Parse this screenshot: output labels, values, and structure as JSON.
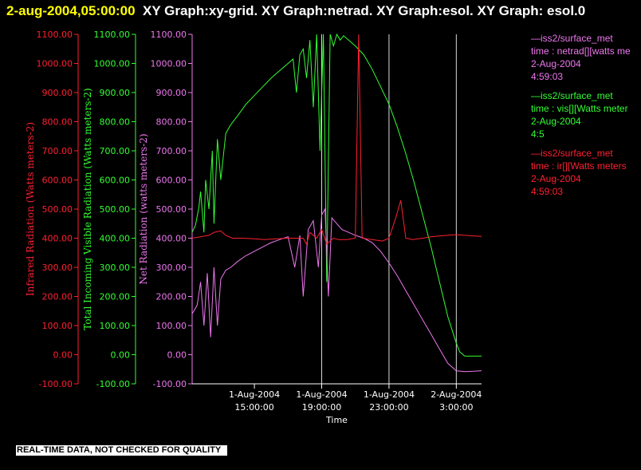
{
  "header": {
    "timestamp": "2-aug-2004,05:00:00",
    "title_text": "XY Graph:xy-grid.  XY Graph:netrad.  XY Graph:esol.  XY Graph: esol.0"
  },
  "footer": {
    "notice": "REAL-TIME DATA, NOT CHECKED FOR QUALITY"
  },
  "colors": {
    "ir": "#ff2030",
    "vis": "#33ff33",
    "netrad": "#ee77ee",
    "axis": "#ffffff",
    "grid": "#ffffff",
    "background": "#000000"
  },
  "legend": [
    {
      "color": "#ee77ee",
      "lines": [
        "—iss2/surface_met",
        "time : netrad[][watts me",
        "2-Aug-2004",
        "4:59:03"
      ]
    },
    {
      "color": "#33ff33",
      "lines": [
        "—iss2/surface_met",
        "time : vis[][Watts meter",
        "2-Aug-2004",
        "4:5"
      ]
    },
    {
      "color": "#ff2030",
      "lines": [
        "—iss2/surface_met",
        "time : ir[][Watts meters",
        "2-Aug-2004",
        "4:59:03"
      ]
    }
  ],
  "chart_data": {
    "type": "line",
    "xlabel": "Time",
    "x_ticks": [
      {
        "line1": "1-Aug-2004",
        "line2": "15:00:00",
        "hour": 15
      },
      {
        "line1": "1-Aug-2004",
        "line2": "19:00:00",
        "hour": 19
      },
      {
        "line1": "1-Aug-2004",
        "line2": "23:00:00",
        "hour": 23
      },
      {
        "line1": "2-Aug-2004",
        "line2": "3:00:00",
        "hour": 27
      }
    ],
    "xlim_hours": [
      11.3,
      28.5
    ],
    "vertical_gridlines_hours": [
      19,
      23,
      27
    ],
    "y_axes": [
      {
        "key": "ir",
        "label": "Infrared Radiation (Watts meters-2)",
        "color": "#ff2030"
      },
      {
        "key": "vis",
        "label": "Total Incoming Visible Radiation (Watts meters-2)",
        "color": "#33ff33"
      },
      {
        "key": "netrad",
        "label": "Net Radiation (watts meters-2)",
        "color": "#ee77ee"
      }
    ],
    "ylim": [
      -100,
      1100
    ],
    "y_ticks": [
      "-100.00",
      "0.00",
      "100.00",
      "200.00",
      "300.00",
      "400.00",
      "500.00",
      "600.00",
      "700.00",
      "800.00",
      "900.00",
      "1000.00",
      "1100.00"
    ],
    "series": [
      {
        "key": "vis",
        "color": "#33ff33",
        "points": [
          [
            11.3,
            420
          ],
          [
            11.5,
            445
          ],
          [
            11.7,
            505
          ],
          [
            11.8,
            560
          ],
          [
            12.0,
            420
          ],
          [
            12.1,
            600
          ],
          [
            12.3,
            500
          ],
          [
            12.5,
            700
          ],
          [
            12.6,
            450
          ],
          [
            12.8,
            740
          ],
          [
            13.0,
            600
          ],
          [
            13.3,
            760
          ],
          [
            13.6,
            790
          ],
          [
            14.0,
            820
          ],
          [
            14.5,
            860
          ],
          [
            15.0,
            890
          ],
          [
            15.5,
            920
          ],
          [
            16.0,
            950
          ],
          [
            16.5,
            975
          ],
          [
            17.0,
            1000
          ],
          [
            17.3,
            1015
          ],
          [
            17.5,
            900
          ],
          [
            17.7,
            1030
          ],
          [
            17.9,
            1050
          ],
          [
            18.1,
            950
          ],
          [
            18.3,
            1080
          ],
          [
            18.5,
            850
          ],
          [
            18.7,
            1100
          ],
          [
            18.9,
            700
          ],
          [
            19.1,
            1100
          ],
          [
            19.3,
            250
          ],
          [
            19.5,
            1100
          ],
          [
            19.7,
            1060
          ],
          [
            19.9,
            1100
          ],
          [
            20.1,
            1080
          ],
          [
            20.3,
            1095
          ],
          [
            20.6,
            1080
          ],
          [
            21.0,
            1060
          ],
          [
            21.5,
            1030
          ],
          [
            22.0,
            980
          ],
          [
            22.5,
            920
          ],
          [
            23.0,
            860
          ],
          [
            23.5,
            780
          ],
          [
            24.0,
            690
          ],
          [
            24.5,
            590
          ],
          [
            25.0,
            480
          ],
          [
            25.5,
            370
          ],
          [
            26.0,
            250
          ],
          [
            26.5,
            130
          ],
          [
            27.0,
            40
          ],
          [
            27.2,
            10
          ],
          [
            27.5,
            -5
          ],
          [
            28.0,
            -5
          ],
          [
            28.5,
            -5
          ]
        ]
      },
      {
        "key": "netrad",
        "color": "#ee77ee",
        "points": [
          [
            11.3,
            140
          ],
          [
            11.6,
            170
          ],
          [
            11.8,
            250
          ],
          [
            12.0,
            100
          ],
          [
            12.2,
            280
          ],
          [
            12.4,
            60
          ],
          [
            12.6,
            300
          ],
          [
            12.8,
            100
          ],
          [
            13.0,
            260
          ],
          [
            13.3,
            290
          ],
          [
            13.6,
            300
          ],
          [
            14.0,
            320
          ],
          [
            14.5,
            340
          ],
          [
            15.0,
            355
          ],
          [
            15.5,
            370
          ],
          [
            16.0,
            385
          ],
          [
            16.5,
            395
          ],
          [
            17.0,
            405
          ],
          [
            17.4,
            300
          ],
          [
            17.7,
            410
          ],
          [
            17.9,
            200
          ],
          [
            18.2,
            430
          ],
          [
            18.5,
            460
          ],
          [
            18.8,
            300
          ],
          [
            19.0,
            480
          ],
          [
            19.2,
            500
          ],
          [
            19.4,
            200
          ],
          [
            19.6,
            470
          ],
          [
            19.9,
            450
          ],
          [
            20.2,
            430
          ],
          [
            20.6,
            420
          ],
          [
            21.0,
            410
          ],
          [
            21.5,
            400
          ],
          [
            22.0,
            385
          ],
          [
            22.5,
            355
          ],
          [
            23.0,
            315
          ],
          [
            23.5,
            270
          ],
          [
            24.0,
            220
          ],
          [
            24.5,
            170
          ],
          [
            25.0,
            120
          ],
          [
            25.5,
            70
          ],
          [
            26.0,
            20
          ],
          [
            26.5,
            -30
          ],
          [
            27.0,
            -55
          ],
          [
            27.5,
            -58
          ],
          [
            28.0,
            -57
          ],
          [
            28.5,
            -55
          ]
        ]
      },
      {
        "key": "ir",
        "color": "#ff2030",
        "points": [
          [
            11.3,
            400
          ],
          [
            11.8,
            405
          ],
          [
            12.3,
            410
          ],
          [
            12.6,
            420
          ],
          [
            13.0,
            425
          ],
          [
            13.3,
            410
          ],
          [
            13.7,
            400
          ],
          [
            14.3,
            400
          ],
          [
            15.0,
            398
          ],
          [
            15.6,
            395
          ],
          [
            16.3,
            398
          ],
          [
            17.0,
            400
          ],
          [
            17.5,
            400
          ],
          [
            17.9,
            400
          ],
          [
            18.1,
            380
          ],
          [
            18.3,
            420
          ],
          [
            18.7,
            400
          ],
          [
            19.0,
            430
          ],
          [
            19.3,
            380
          ],
          [
            19.7,
            400
          ],
          [
            20.0,
            395
          ],
          [
            20.5,
            395
          ],
          [
            21.0,
            400
          ],
          [
            21.2,
            1100
          ],
          [
            21.4,
            400
          ],
          [
            22.0,
            395
          ],
          [
            22.6,
            390
          ],
          [
            23.0,
            400
          ],
          [
            23.4,
            470
          ],
          [
            23.7,
            530
          ],
          [
            24.0,
            400
          ],
          [
            24.4,
            395
          ],
          [
            25.0,
            400
          ],
          [
            25.5,
            405
          ],
          [
            26.0,
            408
          ],
          [
            26.5,
            410
          ],
          [
            27.0,
            412
          ],
          [
            27.5,
            410
          ],
          [
            28.0,
            408
          ],
          [
            28.5,
            406
          ]
        ]
      }
    ]
  }
}
